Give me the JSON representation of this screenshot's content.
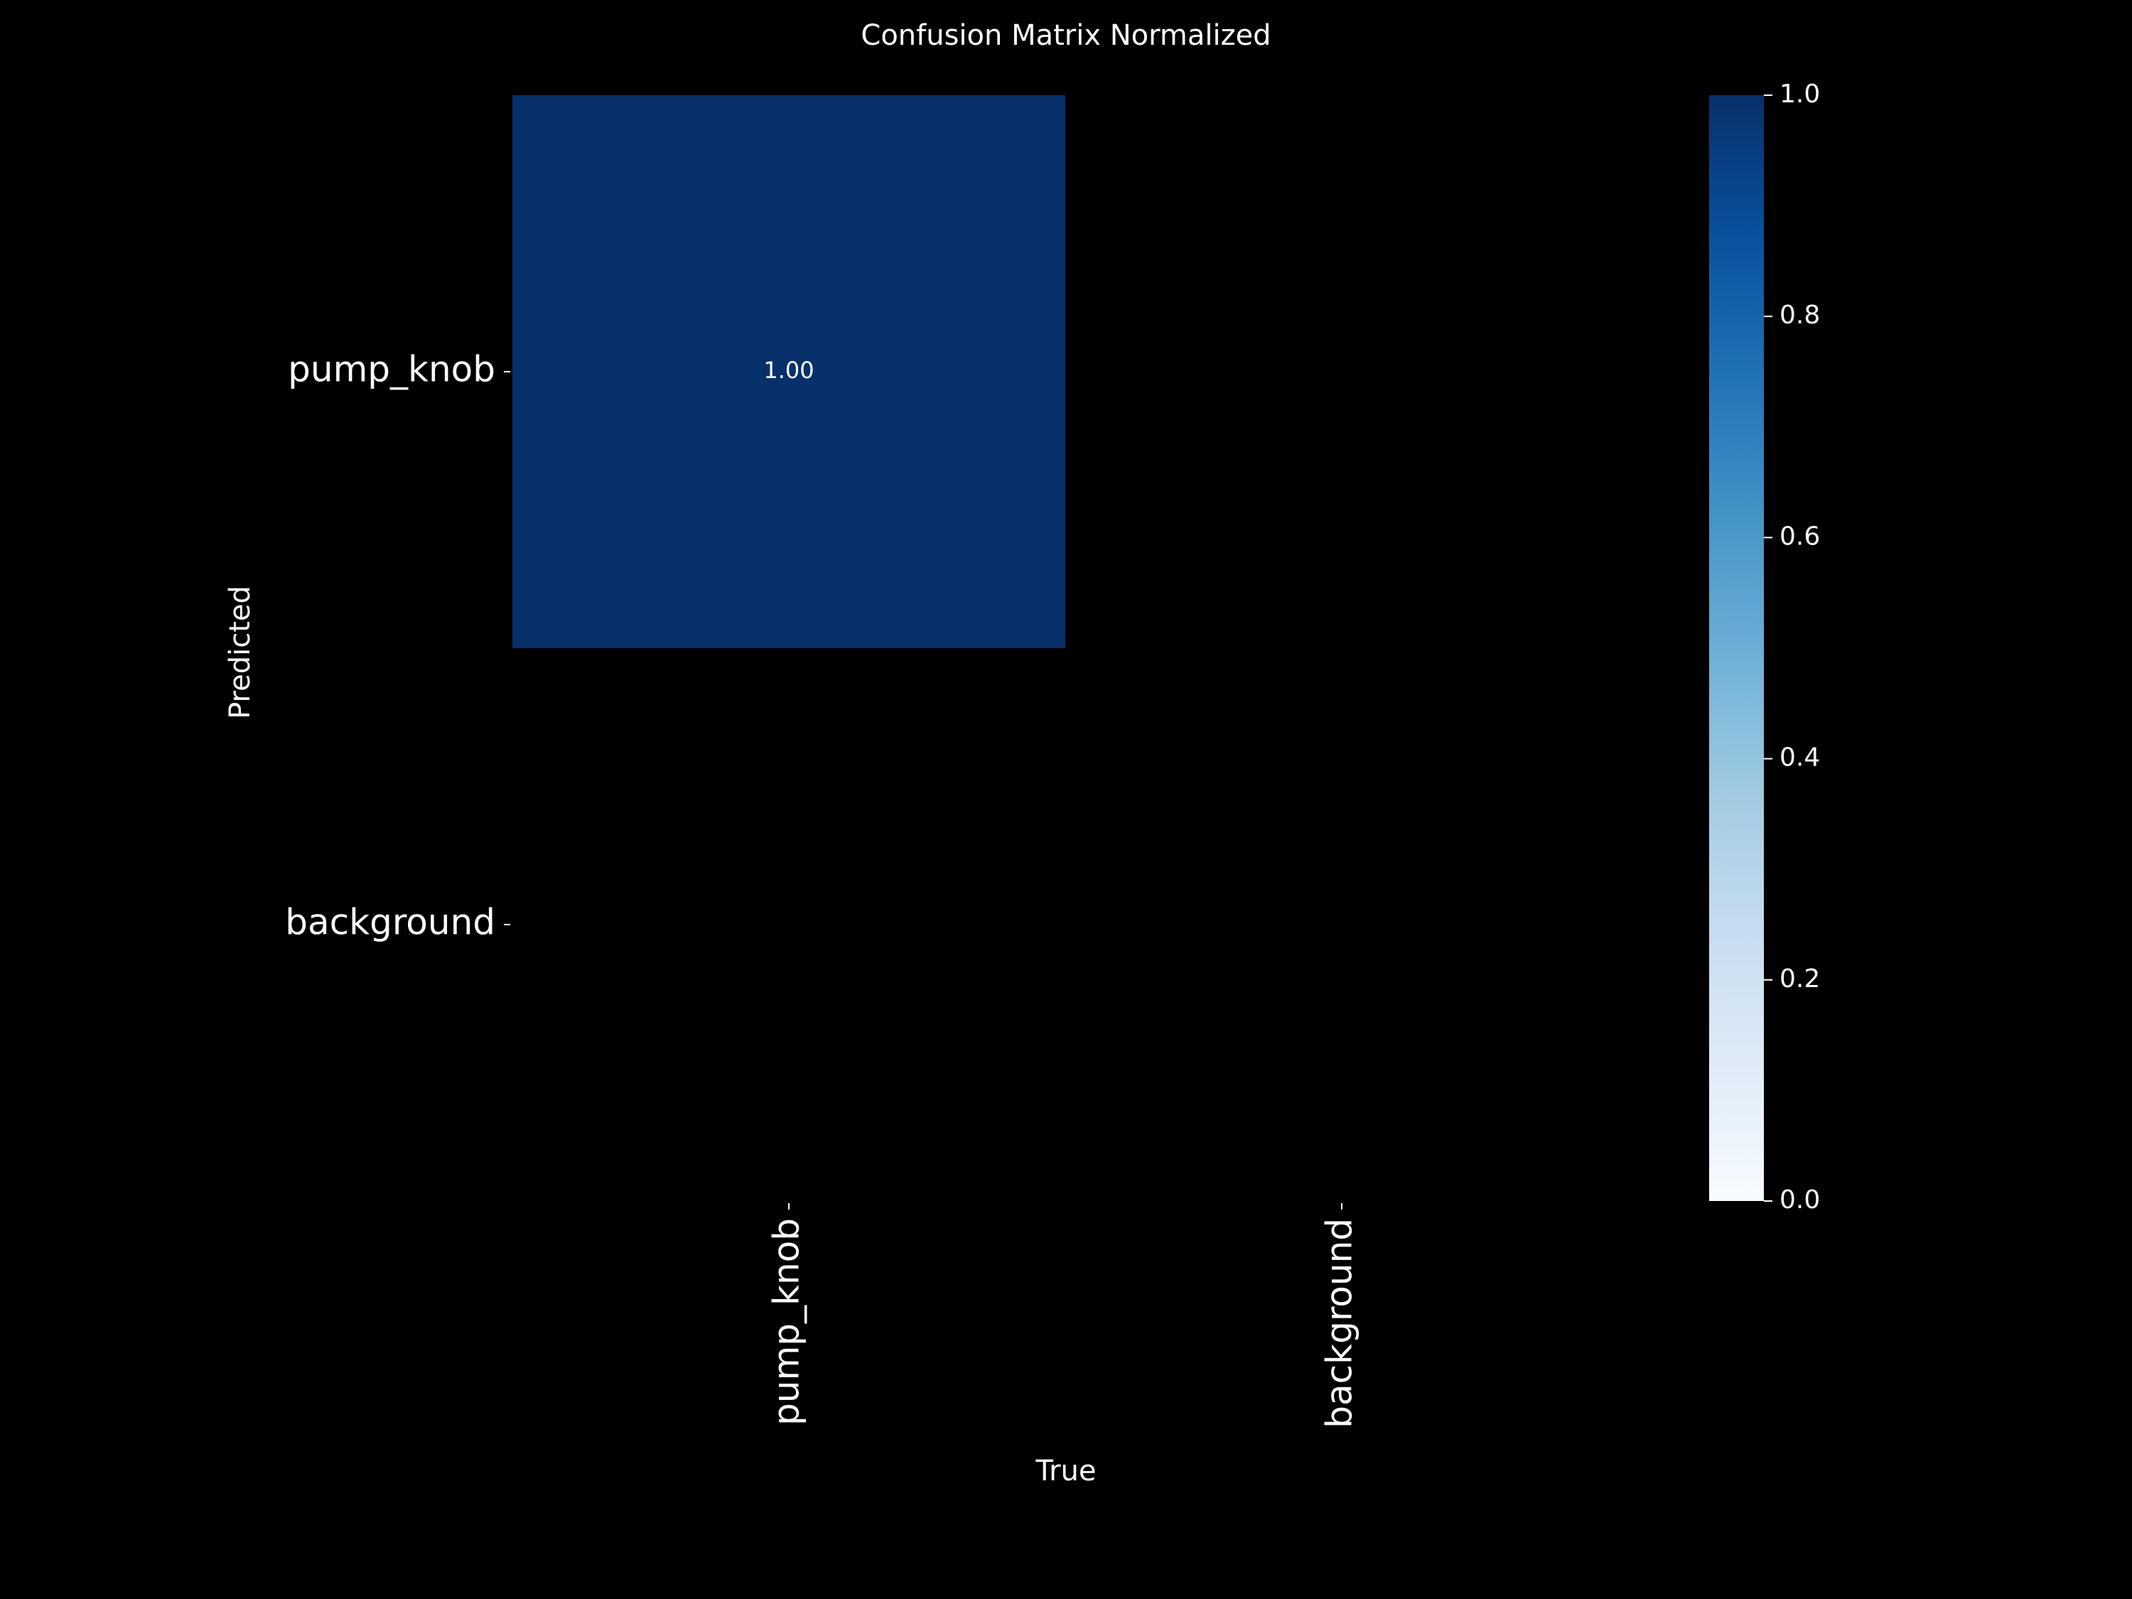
{
  "chart_data": {
    "type": "heatmap",
    "title": "Confusion Matrix Normalized",
    "xlabel": "True",
    "ylabel": "Predicted",
    "x_categories": [
      "pump_knob",
      "background"
    ],
    "y_categories": [
      "pump_knob",
      "background"
    ],
    "values": [
      [
        1.0,
        null
      ],
      [
        null,
        null
      ]
    ],
    "annotations": [
      [
        "1.00",
        ""
      ],
      [
        "",
        ""
      ]
    ],
    "colorbar": {
      "colormap": "Blues",
      "range": [
        0.0,
        1.0
      ],
      "ticks": [
        "0.0",
        "0.2",
        "0.4",
        "0.6",
        "0.8",
        "1.0"
      ]
    },
    "background_color": "#000000",
    "text_color": "#ffffff"
  }
}
